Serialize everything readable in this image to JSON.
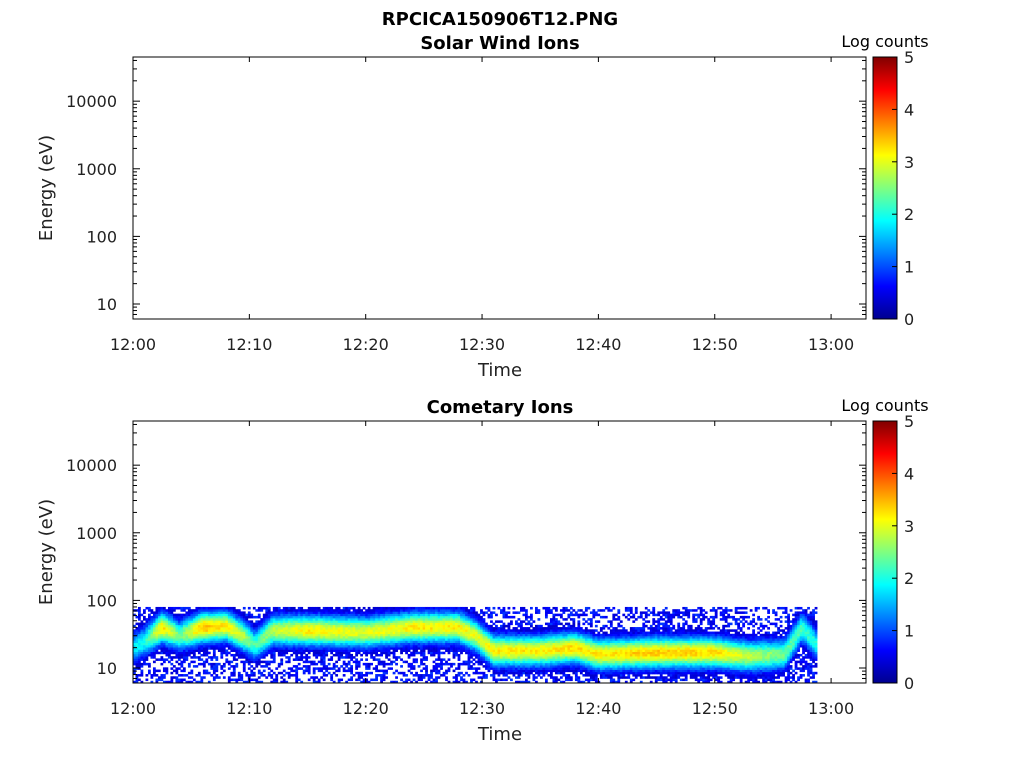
{
  "figure_title": "RPCICA150906T12.PNG",
  "chart_data": [
    {
      "type": "heatmap",
      "title": "Solar Wind Ions",
      "xlabel": "Time",
      "ylabel": "Energy (eV)",
      "x_ticks": [
        "12:00",
        "12:10",
        "12:20",
        "12:30",
        "12:40",
        "12:50",
        "13:00"
      ],
      "x_range_minutes": [
        0,
        63
      ],
      "y_scale": "log",
      "y_ticks": [
        "10",
        "100",
        "1000",
        "10000"
      ],
      "y_range": [
        6,
        45000
      ],
      "colorbar": {
        "label": "Log counts",
        "ticks": [
          "0",
          "1",
          "2",
          "3",
          "4",
          "5"
        ],
        "range": [
          0,
          5
        ],
        "colormap": "jet"
      },
      "data_present": false,
      "data": []
    },
    {
      "type": "heatmap",
      "title": "Cometary Ions",
      "xlabel": "Time",
      "ylabel": "Energy (eV)",
      "x_ticks": [
        "12:00",
        "12:10",
        "12:20",
        "12:30",
        "12:40",
        "12:50",
        "13:00"
      ],
      "x_range_minutes": [
        0,
        63
      ],
      "y_scale": "log",
      "y_ticks": [
        "10",
        "100",
        "1000",
        "10000"
      ],
      "y_range": [
        6,
        45000
      ],
      "colorbar": {
        "label": "Log counts",
        "ticks": [
          "0",
          "1",
          "2",
          "3",
          "4",
          "5"
        ],
        "range": [
          0,
          5
        ],
        "colormap": "jet"
      },
      "data_present": true,
      "data_time_range_minutes": [
        0,
        58.8
      ],
      "energy_upper_edge_eV": 80,
      "peak_energy_track": [
        {
          "t": 0,
          "e": 20,
          "v": 1.8
        },
        {
          "t": 1,
          "e": 25,
          "v": 2.0
        },
        {
          "t": 2.5,
          "e": 40,
          "v": 3.3
        },
        {
          "t": 4,
          "e": 30,
          "v": 2.4
        },
        {
          "t": 6,
          "e": 40,
          "v": 3.5
        },
        {
          "t": 8,
          "e": 42,
          "v": 3.2
        },
        {
          "t": 9.5,
          "e": 30,
          "v": 2.8
        },
        {
          "t": 10.5,
          "e": 22,
          "v": 2.2
        },
        {
          "t": 12,
          "e": 36,
          "v": 2.8
        },
        {
          "t": 15,
          "e": 36,
          "v": 3.2
        },
        {
          "t": 20,
          "e": 34,
          "v": 3.0
        },
        {
          "t": 24,
          "e": 40,
          "v": 3.2
        },
        {
          "t": 28,
          "e": 40,
          "v": 3.2
        },
        {
          "t": 29.5,
          "e": 30,
          "v": 3.0
        },
        {
          "t": 31,
          "e": 18,
          "v": 3.2
        },
        {
          "t": 35,
          "e": 18,
          "v": 3.2
        },
        {
          "t": 38,
          "e": 20,
          "v": 3.3
        },
        {
          "t": 40,
          "e": 16,
          "v": 3.2
        },
        {
          "t": 45,
          "e": 17,
          "v": 3.4
        },
        {
          "t": 50,
          "e": 17,
          "v": 3.3
        },
        {
          "t": 53,
          "e": 15,
          "v": 2.8
        },
        {
          "t": 56,
          "e": 16,
          "v": 2.4
        },
        {
          "t": 57.5,
          "e": 40,
          "v": 2.2
        },
        {
          "t": 58.8,
          "e": 22,
          "v": 2.0
        }
      ]
    }
  ]
}
